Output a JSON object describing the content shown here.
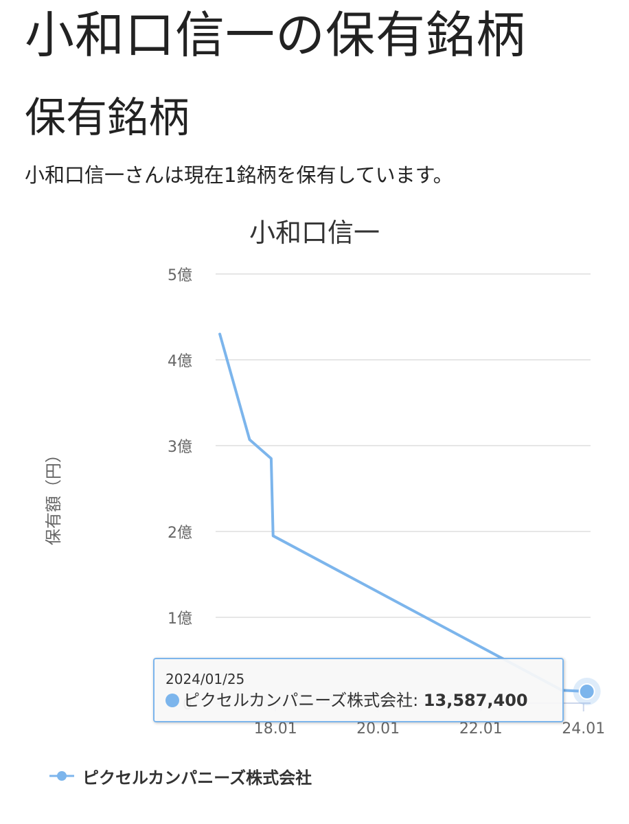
{
  "page": {
    "title": "小和口信一の保有銘柄",
    "section_title": "保有銘柄",
    "intro": "小和口信一さんは現在1銘柄を保有しています。"
  },
  "chart_data": {
    "type": "line",
    "title": "小和口信一",
    "ylabel": "保有額（円）",
    "xlabel": "",
    "ylim": [
      0,
      500000000
    ],
    "yticks": [
      {
        "value": 0,
        "label": "0"
      },
      {
        "value": 100000000,
        "label": "1億"
      },
      {
        "value": 200000000,
        "label": "2億"
      },
      {
        "value": 300000000,
        "label": "3億"
      },
      {
        "value": 400000000,
        "label": "4億"
      },
      {
        "value": 500000000,
        "label": "5億"
      }
    ],
    "xlim": [
      "2016-11-01",
      "2024-02-20"
    ],
    "xticks": [
      {
        "value": "2018-01-01",
        "label": "18.01"
      },
      {
        "value": "2020-01-01",
        "label": "20.01"
      },
      {
        "value": "2022-01-01",
        "label": "22.01"
      },
      {
        "value": "2024-01-01",
        "label": "24.01"
      }
    ],
    "grid": true,
    "legend_position": "bottom-left",
    "series": [
      {
        "name": "ピクセルカンパニーズ株式会社",
        "color": "#7cb5ec",
        "points": [
          {
            "x": "2016-12-01",
            "y": 430000000
          },
          {
            "x": "2017-07-01",
            "y": 307000000
          },
          {
            "x": "2017-12-01",
            "y": 285000000
          },
          {
            "x": "2017-12-15",
            "y": 195000000
          },
          {
            "x": "2023-08-01",
            "y": 15000000
          },
          {
            "x": "2024-01-25",
            "y": 13587400
          }
        ]
      }
    ],
    "tooltip": {
      "date": "2024/01/25",
      "series_label": "ピクセルカンパニーズ株式会社: ",
      "value": "13,587,400"
    }
  }
}
